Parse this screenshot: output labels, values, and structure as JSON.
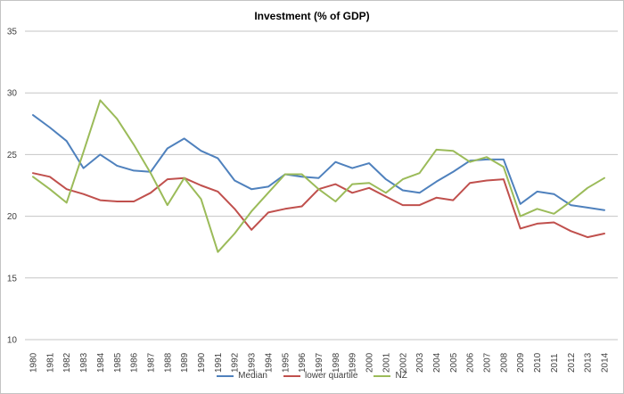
{
  "window": {
    "background": "#FFFFFF",
    "border_color": "#C3C3C3",
    "gridline_color": "#C6C6C6",
    "axis_label_color": "#3F3F3F"
  },
  "chart_data": {
    "type": "line",
    "title": "Investment (% of GDP)",
    "x": [
      "1980",
      "1981",
      "1982",
      "1983",
      "1984",
      "1985",
      "1986",
      "1987",
      "1988",
      "1989",
      "1990",
      "1991",
      "1992",
      "1993",
      "1994",
      "1995",
      "1996",
      "1997",
      "1998",
      "1999",
      "2000",
      "2001",
      "2002",
      "2003",
      "2004",
      "2005",
      "2006",
      "2007",
      "2008",
      "2009",
      "2010",
      "2011",
      "2012",
      "2013",
      "2014"
    ],
    "xlabel": "",
    "ylabel": "",
    "ylim": [
      10,
      35
    ],
    "yticks": [
      35,
      30,
      25,
      20,
      15,
      10
    ],
    "grid": "horizontal",
    "legend_position": "bottom",
    "series": [
      {
        "name": "Median",
        "color": "#4F81BD",
        "values": [
          28.2,
          27.2,
          26.1,
          23.9,
          25.0,
          24.1,
          23.7,
          23.6,
          25.5,
          26.3,
          25.3,
          24.7,
          22.9,
          22.2,
          22.4,
          23.4,
          23.2,
          23.1,
          24.4,
          23.9,
          24.3,
          23.0,
          22.1,
          21.9,
          22.8,
          23.6,
          24.5,
          24.6,
          24.6,
          21.0,
          22.0,
          21.8,
          20.9,
          20.7,
          20.5
        ]
      },
      {
        "name": "lower quartile",
        "color": "#C0504D",
        "values": [
          23.5,
          23.2,
          22.2,
          21.8,
          21.3,
          21.2,
          21.2,
          21.9,
          23.0,
          23.1,
          22.5,
          22.0,
          20.6,
          18.9,
          20.3,
          20.6,
          20.8,
          22.2,
          22.6,
          21.9,
          22.3,
          21.6,
          20.9,
          20.9,
          21.5,
          21.3,
          22.7,
          22.9,
          23.0,
          19.0,
          19.4,
          19.5,
          18.8,
          18.3,
          18.6
        ]
      },
      {
        "name": "NZ",
        "color": "#9BBB59",
        "values": [
          23.2,
          22.2,
          21.1,
          25.2,
          29.4,
          27.9,
          25.8,
          23.5,
          20.9,
          23.1,
          21.4,
          17.1,
          18.6,
          20.4,
          21.9,
          23.4,
          23.4,
          22.2,
          21.2,
          22.6,
          22.7,
          21.9,
          23.0,
          23.5,
          25.4,
          25.3,
          24.4,
          24.8,
          24.0,
          20.0,
          20.6,
          20.2,
          21.2,
          22.3,
          23.1
        ]
      }
    ]
  }
}
